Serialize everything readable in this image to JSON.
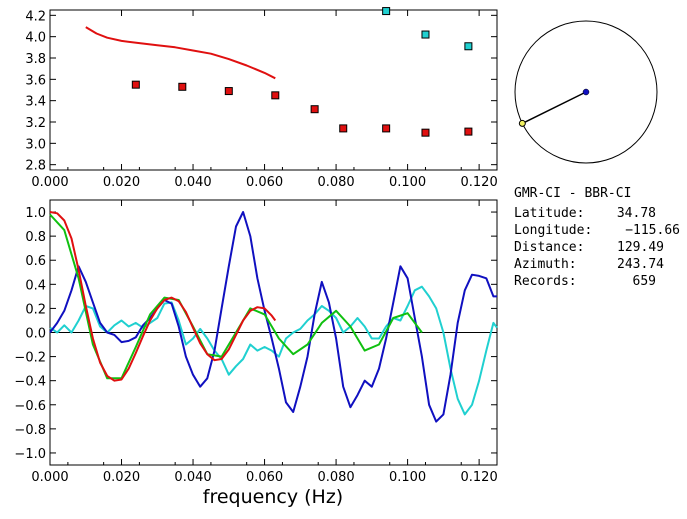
{
  "info": {
    "station_pair": "GMR-CI  -  BBR-CI",
    "lines": [
      {
        "label": "Latitude:",
        "value": "34.78"
      },
      {
        "label": "Longitude:",
        "value": "−115.66"
      },
      {
        "label": "Distance:",
        "value": "129.49"
      },
      {
        "label": "Azimuth:",
        "value": "243.74"
      },
      {
        "label": "Records:",
        "value": "659"
      }
    ],
    "azimuth_deg": 243.74
  },
  "chart_data": [
    {
      "type": "scatter",
      "xlim": [
        0.0,
        0.125
      ],
      "ylim": [
        2.75,
        4.25
      ],
      "xticks": [
        "0.000",
        "0.020",
        "0.040",
        "0.060",
        "0.080",
        "0.100",
        "0.120"
      ],
      "yticks": [
        "2.8",
        "3.0",
        "3.2",
        "3.4",
        "3.6",
        "3.8",
        "4.0",
        "4.2"
      ],
      "series": [
        {
          "kind": "line",
          "color": "#e01010",
          "x": [
            0.01,
            0.013,
            0.016,
            0.02,
            0.025,
            0.03,
            0.035,
            0.04,
            0.045,
            0.05,
            0.055,
            0.06,
            0.063
          ],
          "y": [
            4.09,
            4.03,
            3.99,
            3.96,
            3.94,
            3.92,
            3.9,
            3.87,
            3.84,
            3.79,
            3.73,
            3.66,
            3.61
          ]
        },
        {
          "kind": "markers",
          "color": "#e01010",
          "x": [
            0.024,
            0.037,
            0.05,
            0.063,
            0.074,
            0.082,
            0.094,
            0.105,
            0.117
          ],
          "y": [
            3.55,
            3.53,
            3.49,
            3.45,
            3.32,
            3.14,
            3.14,
            3.1,
            3.11
          ]
        },
        {
          "kind": "markers",
          "color": "#20d0d0",
          "x": [
            0.094,
            0.105,
            0.117
          ],
          "y": [
            4.24,
            4.02,
            3.91
          ]
        }
      ]
    },
    {
      "type": "line",
      "xlabel": "frequency (Hz)",
      "xlim": [
        0.0,
        0.125
      ],
      "ylim": [
        -1.1,
        1.1
      ],
      "xticks": [
        "0.000",
        "0.020",
        "0.040",
        "0.060",
        "0.080",
        "0.100",
        "0.120"
      ],
      "yticks": [
        "1.0",
        "0.8",
        "0.6",
        "0.4",
        "0.2",
        "0.0",
        "−0.2",
        "−0.4",
        "−0.6",
        "−0.8",
        "−1.0"
      ],
      "zero_line": true,
      "series": [
        {
          "color": "#20d0d0",
          "x": [
            0.0,
            0.002,
            0.004,
            0.006,
            0.008,
            0.01,
            0.012,
            0.014,
            0.016,
            0.018,
            0.02,
            0.022,
            0.024,
            0.026,
            0.028,
            0.03,
            0.032,
            0.034,
            0.036,
            0.038,
            0.04,
            0.042,
            0.044,
            0.046,
            0.048,
            0.05,
            0.052,
            0.054,
            0.056,
            0.058,
            0.06,
            0.062,
            0.064,
            0.066,
            0.068,
            0.07,
            0.072,
            0.074,
            0.076,
            0.078,
            0.08,
            0.082,
            0.084,
            0.086,
            0.088,
            0.09,
            0.092,
            0.094,
            0.096,
            0.098,
            0.1,
            0.102,
            0.104,
            0.106,
            0.108,
            0.11,
            0.112,
            0.114,
            0.116,
            0.118,
            0.12,
            0.122,
            0.124,
            0.125
          ],
          "y": [
            0.04,
            0.0,
            0.06,
            0.0,
            0.1,
            0.22,
            0.2,
            0.05,
            0.0,
            0.06,
            0.1,
            0.05,
            0.08,
            0.04,
            0.08,
            0.12,
            0.24,
            0.25,
            0.1,
            -0.1,
            -0.05,
            0.03,
            -0.05,
            -0.15,
            -0.22,
            -0.35,
            -0.28,
            -0.22,
            -0.1,
            -0.15,
            -0.12,
            -0.15,
            -0.2,
            -0.05,
            0.0,
            0.03,
            0.1,
            0.15,
            0.22,
            0.18,
            0.12,
            0.0,
            0.05,
            0.12,
            0.05,
            -0.05,
            -0.05,
            0.05,
            0.12,
            0.1,
            0.22,
            0.35,
            0.38,
            0.3,
            0.2,
            0.0,
            -0.3,
            -0.55,
            -0.68,
            -0.6,
            -0.4,
            -0.15,
            0.08,
            0.04
          ]
        },
        {
          "color": "#1010c0",
          "x": [
            0.0,
            0.002,
            0.004,
            0.006,
            0.008,
            0.01,
            0.012,
            0.014,
            0.016,
            0.018,
            0.02,
            0.022,
            0.024,
            0.026,
            0.028,
            0.03,
            0.032,
            0.034,
            0.036,
            0.038,
            0.04,
            0.042,
            0.044,
            0.046,
            0.048,
            0.05,
            0.052,
            0.054,
            0.056,
            0.058,
            0.06,
            0.062,
            0.064,
            0.066,
            0.068,
            0.07,
            0.072,
            0.074,
            0.076,
            0.078,
            0.08,
            0.082,
            0.084,
            0.086,
            0.088,
            0.09,
            0.092,
            0.094,
            0.096,
            0.098,
            0.1,
            0.102,
            0.104,
            0.106,
            0.108,
            0.11,
            0.112,
            0.114,
            0.116,
            0.118,
            0.12,
            0.122,
            0.124,
            0.125
          ],
          "y": [
            0.0,
            0.08,
            0.18,
            0.35,
            0.55,
            0.42,
            0.25,
            0.08,
            0.0,
            -0.02,
            -0.08,
            -0.07,
            -0.04,
            0.06,
            0.12,
            0.2,
            0.27,
            0.24,
            0.05,
            -0.2,
            -0.35,
            -0.45,
            -0.38,
            -0.15,
            0.2,
            0.55,
            0.88,
            1.0,
            0.8,
            0.45,
            0.18,
            -0.05,
            -0.3,
            -0.58,
            -0.66,
            -0.45,
            -0.2,
            0.15,
            0.42,
            0.25,
            -0.05,
            -0.45,
            -0.62,
            -0.52,
            -0.4,
            -0.45,
            -0.3,
            -0.05,
            0.25,
            0.55,
            0.45,
            0.12,
            -0.2,
            -0.6,
            -0.74,
            -0.68,
            -0.35,
            0.08,
            0.35,
            0.48,
            0.47,
            0.45,
            0.3,
            0.3
          ]
        },
        {
          "color": "#10c010",
          "x": [
            0.0,
            0.004,
            0.008,
            0.012,
            0.016,
            0.02,
            0.024,
            0.028,
            0.032,
            0.036,
            0.04,
            0.044,
            0.048,
            0.052,
            0.056,
            0.06,
            0.064,
            0.068,
            0.072,
            0.076,
            0.08,
            0.084,
            0.088,
            0.092,
            0.096,
            0.1,
            0.104
          ],
          "y": [
            0.98,
            0.85,
            0.45,
            -0.1,
            -0.38,
            -0.38,
            -0.12,
            0.15,
            0.29,
            0.27,
            0.05,
            -0.18,
            -0.2,
            0.0,
            0.2,
            0.15,
            -0.05,
            -0.18,
            -0.1,
            0.08,
            0.18,
            0.05,
            -0.15,
            -0.1,
            0.12,
            0.16,
            0.0
          ]
        },
        {
          "color": "#e01010",
          "x": [
            0.0,
            0.002,
            0.004,
            0.006,
            0.008,
            0.01,
            0.012,
            0.014,
            0.016,
            0.018,
            0.02,
            0.022,
            0.024,
            0.026,
            0.028,
            0.03,
            0.032,
            0.034,
            0.036,
            0.038,
            0.04,
            0.042,
            0.044,
            0.046,
            0.048,
            0.05,
            0.052,
            0.054,
            0.056,
            0.058,
            0.06,
            0.062,
            0.063
          ],
          "y": [
            1.0,
            0.99,
            0.93,
            0.78,
            0.52,
            0.22,
            -0.05,
            -0.25,
            -0.36,
            -0.4,
            -0.39,
            -0.3,
            -0.17,
            -0.03,
            0.1,
            0.2,
            0.27,
            0.29,
            0.26,
            0.17,
            0.04,
            -0.09,
            -0.18,
            -0.23,
            -0.22,
            -0.14,
            -0.02,
            0.1,
            0.18,
            0.21,
            0.2,
            0.14,
            0.1
          ]
        }
      ]
    }
  ]
}
